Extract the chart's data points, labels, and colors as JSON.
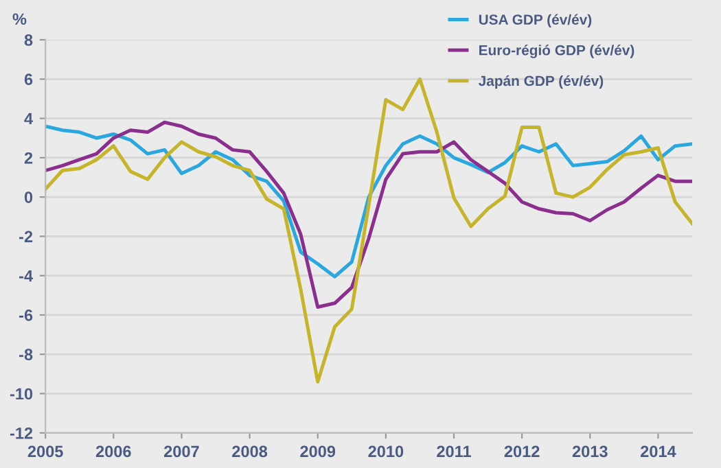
{
  "chart_data": {
    "type": "line",
    "ylabel": "%",
    "x": [
      2005.0,
      2005.25,
      2005.5,
      2005.75,
      2006.0,
      2006.25,
      2006.5,
      2006.75,
      2007.0,
      2007.25,
      2007.5,
      2007.75,
      2008.0,
      2008.25,
      2008.5,
      2008.75,
      2009.0,
      2009.25,
      2009.5,
      2009.75,
      2010.0,
      2010.25,
      2010.5,
      2010.75,
      2011.0,
      2011.25,
      2011.5,
      2011.75,
      2012.0,
      2012.25,
      2012.5,
      2012.75,
      2013.0,
      2013.25,
      2013.5,
      2013.75,
      2014.0,
      2014.25,
      2014.5
    ],
    "series": [
      {
        "name": "USA GDP (év/év)",
        "color": "#2aa7de",
        "values": [
          3.6,
          3.4,
          3.3,
          3.0,
          3.2,
          2.9,
          2.2,
          2.4,
          1.2,
          1.6,
          2.3,
          1.9,
          1.1,
          0.8,
          -0.2,
          -2.8,
          -3.4,
          -4.05,
          -3.3,
          0.0,
          1.6,
          2.7,
          3.1,
          2.7,
          2.0,
          1.65,
          1.25,
          1.75,
          2.6,
          2.3,
          2.7,
          1.6,
          1.7,
          1.8,
          2.35,
          3.1,
          1.9,
          2.6,
          2.7
        ]
      },
      {
        "name": "Euro-régió GDP (év/év)",
        "color": "#8b2f8f",
        "values": [
          1.35,
          1.6,
          1.9,
          2.2,
          3.0,
          3.4,
          3.3,
          3.8,
          3.6,
          3.2,
          3.0,
          2.4,
          2.3,
          1.3,
          0.2,
          -1.9,
          -5.6,
          -5.4,
          -4.6,
          -2.1,
          0.9,
          2.2,
          2.3,
          2.3,
          2.8,
          1.9,
          1.3,
          0.7,
          -0.25,
          -0.6,
          -0.8,
          -0.85,
          -1.2,
          -0.65,
          -0.25,
          0.45,
          1.1,
          0.8,
          0.8
        ]
      },
      {
        "name": "Japán GDP (év/év)",
        "color": "#c6b42a",
        "values": [
          0.4,
          1.35,
          1.45,
          1.9,
          2.6,
          1.3,
          0.9,
          2.0,
          2.8,
          2.3,
          2.05,
          1.6,
          1.35,
          -0.1,
          -0.6,
          -4.7,
          -9.4,
          -6.6,
          -5.7,
          -0.4,
          4.95,
          4.45,
          6.0,
          3.3,
          -0.05,
          -1.5,
          -0.6,
          0.05,
          3.55,
          3.55,
          0.2,
          0.0,
          0.5,
          1.4,
          2.15,
          2.3,
          2.5,
          -0.25,
          -1.35
        ]
      }
    ],
    "xlim": [
      2005,
      2014.5
    ],
    "xticks": [
      2005,
      2006,
      2007,
      2008,
      2009,
      2010,
      2011,
      2012,
      2013,
      2014
    ],
    "ylim": [
      -12,
      8
    ],
    "yticks": [
      -12,
      -10,
      -8,
      -6,
      -4,
      -2,
      0,
      2,
      4,
      6,
      8
    ],
    "grid": "y",
    "legend": "top right",
    "marker": "none",
    "line_style": "solid"
  }
}
